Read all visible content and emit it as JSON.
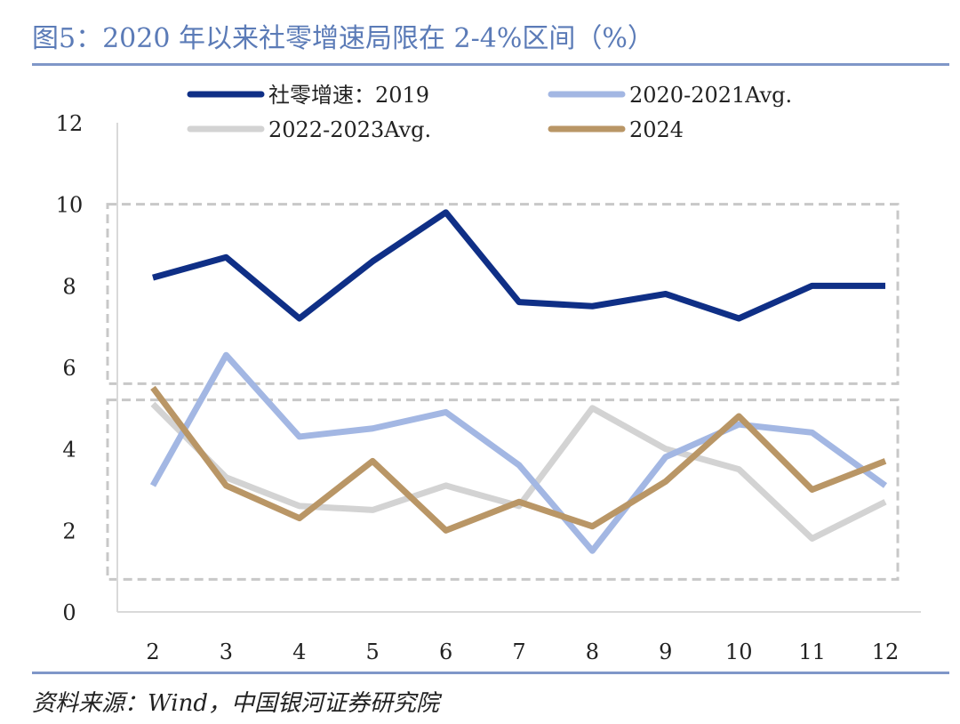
{
  "title": "图5：2020 年以来社零增速局限在 2-4%区间（%）",
  "source": "资料来源：Wind，中国银河证券研究院",
  "chart_data": {
    "type": "line",
    "x": [
      2,
      3,
      4,
      5,
      6,
      7,
      8,
      9,
      10,
      11,
      12
    ],
    "categories": [
      "2",
      "3",
      "4",
      "5",
      "6",
      "7",
      "8",
      "9",
      "10",
      "11",
      "12"
    ],
    "ylim": [
      0,
      12
    ],
    "yticks": [
      "0",
      "2",
      "4",
      "6",
      "8",
      "10",
      "12"
    ],
    "grid": false,
    "legend_position": "top",
    "series": [
      {
        "name": "社零增速：2019",
        "color": "#0f2f86",
        "values": [
          8.2,
          8.7,
          7.2,
          8.6,
          9.8,
          7.6,
          7.5,
          7.8,
          7.2,
          8.0,
          8.0
        ]
      },
      {
        "name": "2020-2021Avg.",
        "color": "#a3b7e3",
        "values": [
          3.1,
          6.3,
          4.3,
          4.5,
          4.9,
          3.6,
          1.5,
          3.8,
          4.6,
          4.4,
          3.1
        ]
      },
      {
        "name": "2022-2023Avg.",
        "color": "#d3d3d3",
        "values": [
          5.1,
          3.3,
          2.6,
          2.5,
          3.1,
          2.6,
          5.0,
          4.0,
          3.5,
          1.8,
          2.7
        ]
      },
      {
        "name": "2024",
        "color": "#b99666",
        "values": [
          5.5,
          3.1,
          2.3,
          3.7,
          2.0,
          2.7,
          2.1,
          3.2,
          4.8,
          3.0,
          3.7
        ]
      }
    ],
    "annotation_boxes": [
      {
        "y_range": [
          5.6,
          10
        ]
      },
      {
        "y_range": [
          0.8,
          5.2
        ]
      }
    ]
  }
}
